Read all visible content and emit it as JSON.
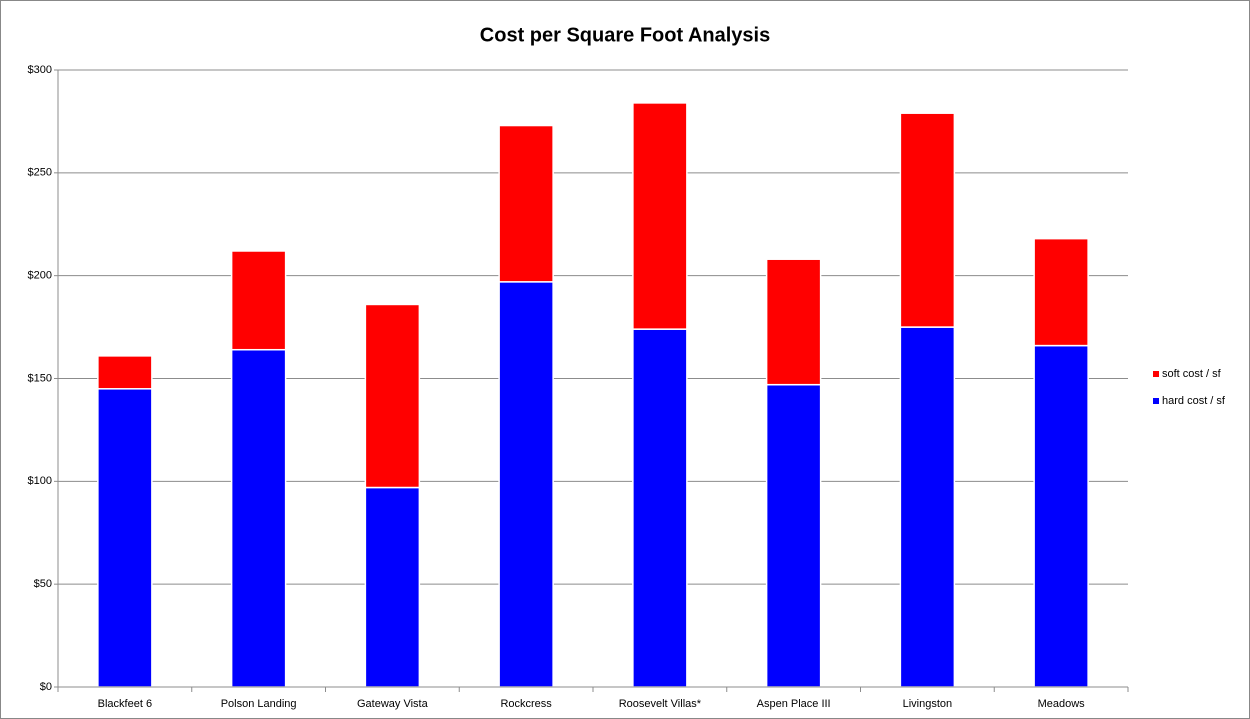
{
  "chart_data": {
    "type": "stacked_bar",
    "title": "Cost per Square Foot Analysis",
    "categories": [
      "Blackfeet 6",
      "Polson Landing",
      "Gateway Vista",
      "Rockcress",
      "Roosevelt Villas*",
      "Aspen Place III",
      "Livingston",
      "Meadows"
    ],
    "series": [
      {
        "name": "hard cost / sf",
        "color": "#0000ff",
        "values": [
          145,
          164,
          97,
          197,
          174,
          147,
          175,
          166
        ]
      },
      {
        "name": "soft cost / sf",
        "color": "#ff0000",
        "values": [
          16,
          48,
          89,
          76,
          110,
          61,
          104,
          52
        ]
      }
    ],
    "ylim": [
      0,
      300
    ],
    "yticks": [
      {
        "value": 0,
        "label": "$0"
      },
      {
        "value": 50,
        "label": "$50"
      },
      {
        "value": 100,
        "label": "$100"
      },
      {
        "value": 150,
        "label": "$150"
      },
      {
        "value": 200,
        "label": "$200"
      },
      {
        "value": 250,
        "label": "$250"
      },
      {
        "value": 300,
        "label": "$300"
      }
    ],
    "grid": true,
    "legend": "right"
  }
}
